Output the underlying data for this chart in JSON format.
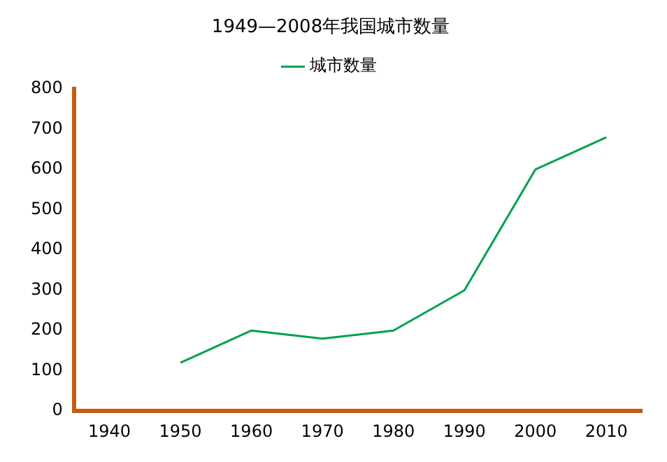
{
  "chart_data": {
    "type": "line",
    "title": "1949—2008年我国城市数量",
    "categories": [
      "1940",
      "1950",
      "1960",
      "1970",
      "1980",
      "1990",
      "2000",
      "2010"
    ],
    "series": [
      {
        "name": "城市数量",
        "color": "#00a050",
        "values": [
          null,
          120,
          200,
          180,
          200,
          300,
          600,
          680
        ]
      }
    ],
    "ylim": [
      0,
      800
    ],
    "yticks": [
      0,
      100,
      200,
      300,
      400,
      500,
      600,
      700,
      800
    ],
    "grid": false,
    "legend": "top",
    "marker": "none",
    "line_style": "solid"
  }
}
